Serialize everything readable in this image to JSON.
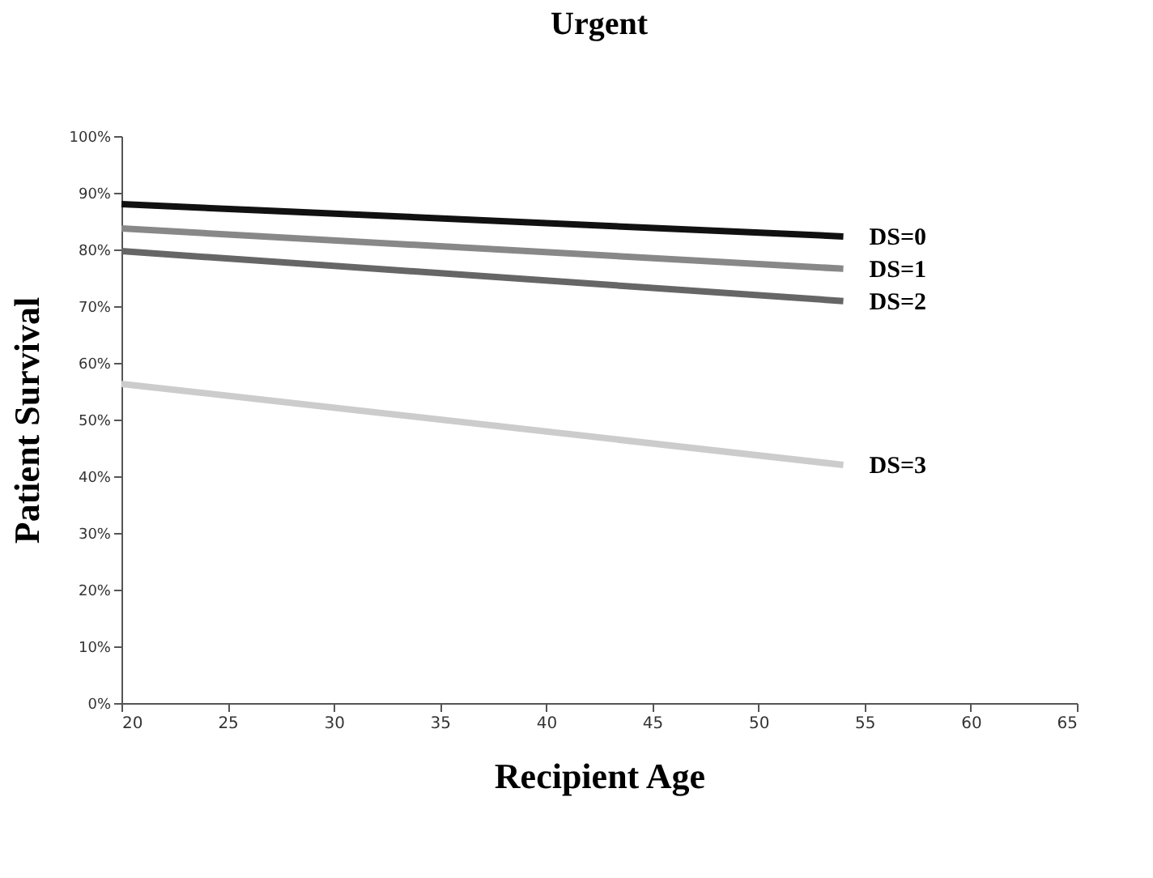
{
  "chart_data": {
    "type": "line",
    "title": "Urgent",
    "xlabel": "Recipient Age",
    "ylabel": "Patient Survival",
    "x": [
      20,
      54
    ],
    "series": [
      {
        "name": "DS=0",
        "color": "#111111",
        "values": [
          88,
          82.3
        ]
      },
      {
        "name": "DS=1",
        "color": "#888888",
        "values": [
          83.7,
          76.6
        ]
      },
      {
        "name": "DS=2",
        "color": "#666666",
        "values": [
          79.7,
          70.9
        ]
      },
      {
        "name": "DS=3",
        "color": "#cccccc",
        "values": [
          56.3,
          42
        ]
      }
    ],
    "xlim": [
      20,
      65
    ],
    "xticks": [
      20,
      25,
      30,
      35,
      40,
      45,
      50,
      55,
      60,
      65
    ],
    "ylim": [
      0,
      100
    ],
    "yticks": [
      {
        "value": 0,
        "label": "0%"
      },
      {
        "value": 10,
        "label": "10%"
      },
      {
        "value": 20,
        "label": "20%"
      },
      {
        "value": 30,
        "label": "30%"
      },
      {
        "value": 40,
        "label": "40%"
      },
      {
        "value": 50,
        "label": "50%"
      },
      {
        "value": 60,
        "label": "60%"
      },
      {
        "value": 70,
        "label": "70%"
      },
      {
        "value": 80,
        "label": "80%"
      },
      {
        "value": 90,
        "label": "90%"
      },
      {
        "value": 100,
        "label": "100%"
      }
    ],
    "grid": false,
    "legend": false,
    "marker": "none",
    "line_style": "solid"
  }
}
